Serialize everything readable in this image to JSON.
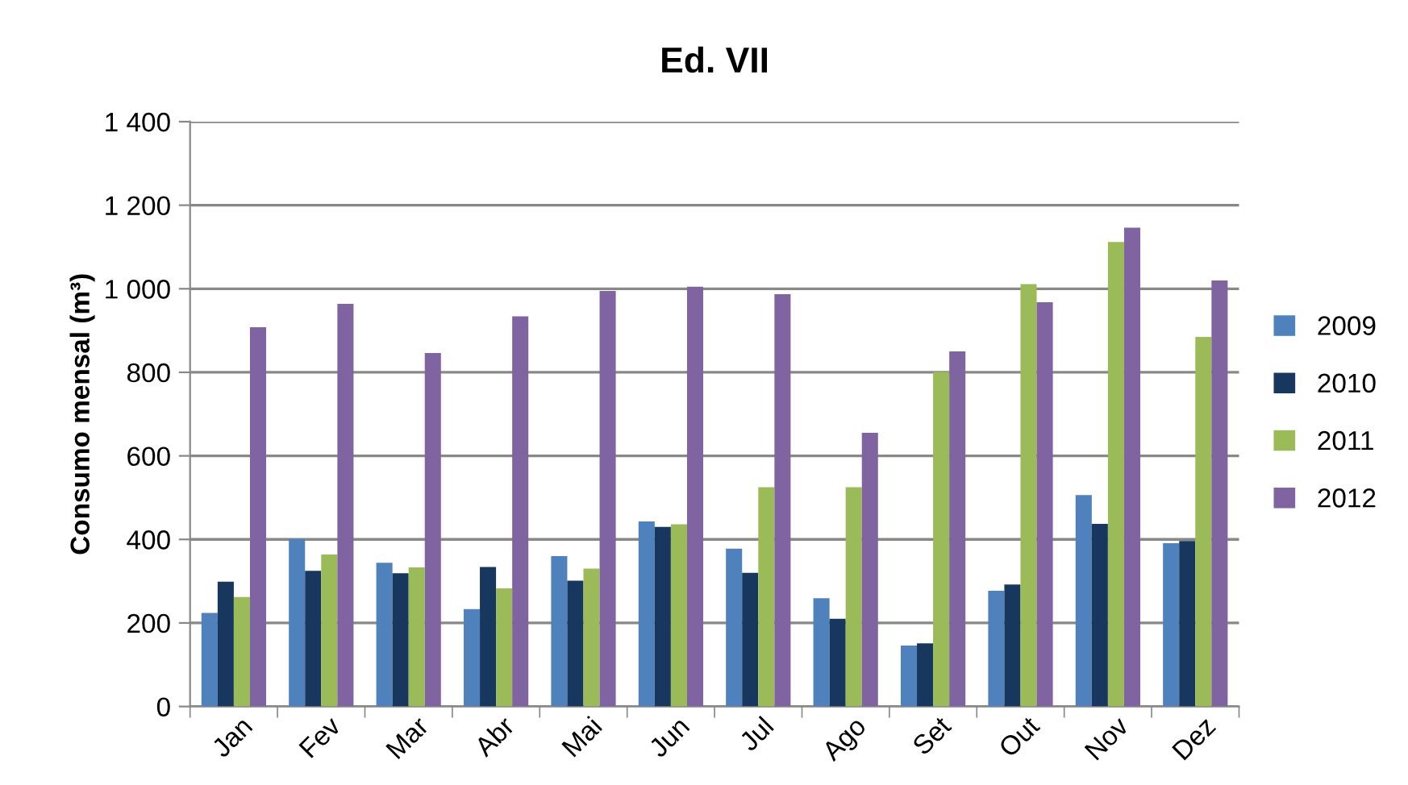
{
  "chart_data": {
    "type": "bar",
    "title": "Ed. VII",
    "ylabel": "Consumo mensal (m³)",
    "categories": [
      "Jan",
      "Fev",
      "Mar",
      "Abr",
      "Mai",
      "Jun",
      "Jul",
      "Ago",
      "Set",
      "Out",
      "Nov",
      "Dez"
    ],
    "series": [
      {
        "name": "2009",
        "color": "#4f81bd",
        "values": [
          224,
          401,
          344,
          233,
          360,
          443,
          378,
          259,
          146,
          277,
          506,
          391
        ]
      },
      {
        "name": "2010",
        "color": "#17375e",
        "values": [
          299,
          325,
          319,
          334,
          301,
          430,
          320,
          210,
          151,
          292,
          437,
          396
        ]
      },
      {
        "name": "2011",
        "color": "#9bbb59",
        "values": [
          262,
          364,
          333,
          283,
          330,
          436,
          525,
          525,
          801,
          1011,
          1112,
          885
        ]
      },
      {
        "name": "2012",
        "color": "#8064a2",
        "values": [
          908,
          964,
          846,
          934,
          995,
          1005,
          987,
          655,
          850,
          968,
          1146,
          1020
        ]
      }
    ],
    "ylim": [
      0,
      1400
    ],
    "yticks": [
      {
        "value": 0,
        "label": "0"
      },
      {
        "value": 200,
        "label": "200"
      },
      {
        "value": 400,
        "label": "400"
      },
      {
        "value": 600,
        "label": "600"
      },
      {
        "value": 800,
        "label": "800"
      },
      {
        "value": 1000,
        "label": "1 000"
      },
      {
        "value": 1200,
        "label": "1 200"
      },
      {
        "value": 1400,
        "label": "1 400"
      }
    ],
    "grid": "y",
    "legend": "right"
  }
}
